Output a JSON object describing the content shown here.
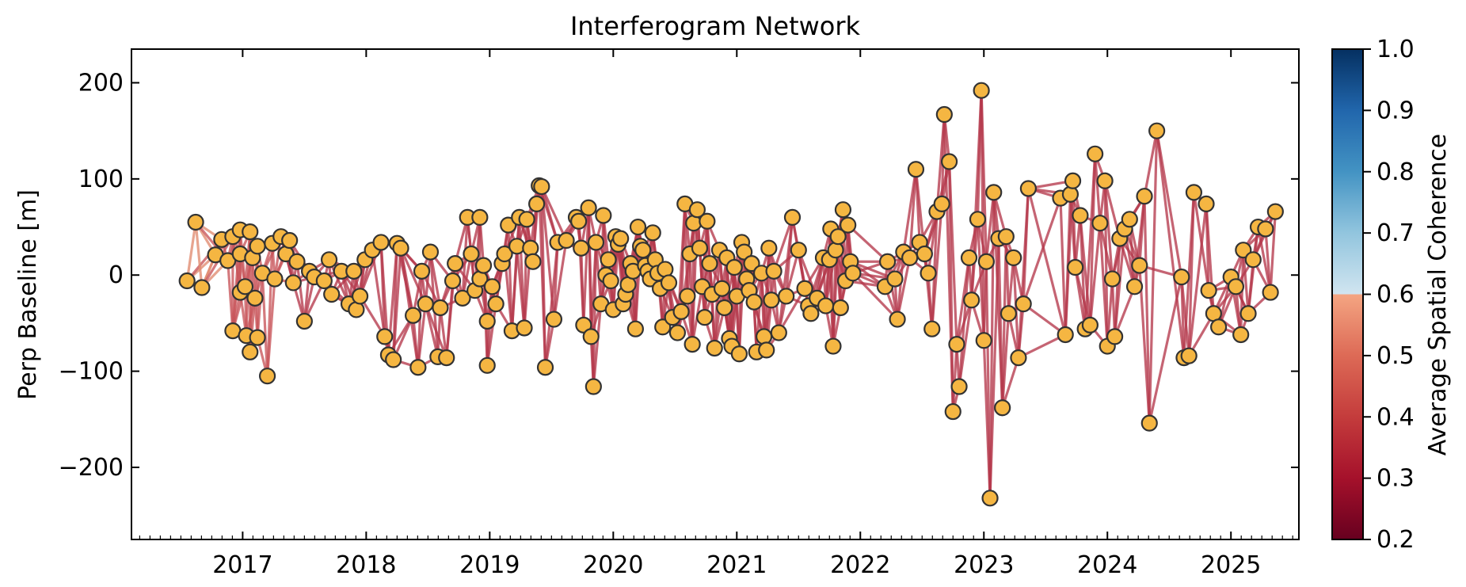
{
  "chart_data": {
    "type": "scatter",
    "title": "Interferogram Network",
    "xlabel": "",
    "ylabel": "Perp Baseline [m]",
    "xlim": [
      2016.1,
      2025.55
    ],
    "ylim": [
      -275,
      235
    ],
    "x_ticks": [
      2017,
      2018,
      2019,
      2020,
      2021,
      2022,
      2023,
      2024,
      2025
    ],
    "x_tick_labels": [
      "2017",
      "2018",
      "2019",
      "2020",
      "2021",
      "2022",
      "2023",
      "2024",
      "2025"
    ],
    "y_ticks": [
      -200,
      -100,
      0,
      100,
      200
    ],
    "y_tick_labels": [
      "−200",
      "−100",
      "0",
      "100",
      "200"
    ],
    "grid": false,
    "legend": "none",
    "marker_color": "#f5b642",
    "marker_edge_color": "#333333",
    "colorbar": {
      "label": "Average Spatial Coherence",
      "range": [
        0.2,
        1.0
      ],
      "ticks": [
        "0.2",
        "0.3",
        "0.4",
        "0.5",
        "0.6",
        "0.7",
        "0.8",
        "0.9",
        "1.0"
      ],
      "colormap": "RdBu"
    },
    "points": [
      [
        2016.55,
        -6
      ],
      [
        2016.62,
        55
      ],
      [
        2016.67,
        -13
      ],
      [
        2016.78,
        21
      ],
      [
        2016.83,
        37
      ],
      [
        2016.88,
        15
      ],
      [
        2016.92,
        40
      ],
      [
        2016.92,
        -58
      ],
      [
        2016.98,
        47
      ],
      [
        2016.98,
        22
      ],
      [
        2016.98,
        -18
      ],
      [
        2017.02,
        -12
      ],
      [
        2017.03,
        -63
      ],
      [
        2017.06,
        45
      ],
      [
        2017.06,
        -80
      ],
      [
        2017.08,
        18
      ],
      [
        2017.1,
        -24
      ],
      [
        2017.12,
        30
      ],
      [
        2017.12,
        -65
      ],
      [
        2017.16,
        2
      ],
      [
        2017.2,
        -105
      ],
      [
        2017.24,
        33
      ],
      [
        2017.26,
        -4
      ],
      [
        2017.31,
        40
      ],
      [
        2017.35,
        22
      ],
      [
        2017.38,
        36
      ],
      [
        2017.41,
        -8
      ],
      [
        2017.44,
        14
      ],
      [
        2017.5,
        -48
      ],
      [
        2017.54,
        4
      ],
      [
        2017.58,
        -2
      ],
      [
        2017.66,
        -6
      ],
      [
        2017.7,
        16
      ],
      [
        2017.72,
        -20
      ],
      [
        2017.8,
        4
      ],
      [
        2017.86,
        -30
      ],
      [
        2017.9,
        4
      ],
      [
        2017.92,
        -36
      ],
      [
        2017.95,
        -22
      ],
      [
        2017.99,
        16
      ],
      [
        2018.05,
        26
      ],
      [
        2018.12,
        34
      ],
      [
        2018.15,
        -64
      ],
      [
        2018.18,
        -83
      ],
      [
        2018.22,
        -88
      ],
      [
        2018.25,
        33
      ],
      [
        2018.28,
        28
      ],
      [
        2018.38,
        -42
      ],
      [
        2018.42,
        -96
      ],
      [
        2018.45,
        4
      ],
      [
        2018.48,
        -30
      ],
      [
        2018.52,
        24
      ],
      [
        2018.58,
        -85
      ],
      [
        2018.6,
        -34
      ],
      [
        2018.65,
        -86
      ],
      [
        2018.7,
        -6
      ],
      [
        2018.72,
        12
      ],
      [
        2018.78,
        -24
      ],
      [
        2018.82,
        60
      ],
      [
        2018.85,
        22
      ],
      [
        2018.88,
        -16
      ],
      [
        2018.92,
        60
      ],
      [
        2018.92,
        -4
      ],
      [
        2018.95,
        10
      ],
      [
        2018.98,
        -48
      ],
      [
        2018.98,
        -94
      ],
      [
        2019.02,
        -12
      ],
      [
        2019.05,
        -30
      ],
      [
        2019.1,
        12
      ],
      [
        2019.12,
        22
      ],
      [
        2019.15,
        52
      ],
      [
        2019.18,
        -58
      ],
      [
        2019.22,
        30
      ],
      [
        2019.24,
        60
      ],
      [
        2019.28,
        -55
      ],
      [
        2019.3,
        58
      ],
      [
        2019.33,
        28
      ],
      [
        2019.35,
        14
      ],
      [
        2019.38,
        74
      ],
      [
        2019.4,
        93
      ],
      [
        2019.42,
        92
      ],
      [
        2019.45,
        -96
      ],
      [
        2019.52,
        -46
      ],
      [
        2019.55,
        34
      ],
      [
        2019.62,
        36
      ],
      [
        2019.7,
        60
      ],
      [
        2019.72,
        56
      ],
      [
        2019.74,
        28
      ],
      [
        2019.76,
        -52
      ],
      [
        2019.8,
        70
      ],
      [
        2019.82,
        -64
      ],
      [
        2019.84,
        -116
      ],
      [
        2019.86,
        34
      ],
      [
        2019.9,
        -30
      ],
      [
        2019.92,
        62
      ],
      [
        2019.94,
        0
      ],
      [
        2019.96,
        16
      ],
      [
        2019.98,
        -6
      ],
      [
        2020.0,
        -36
      ],
      [
        2020.02,
        40
      ],
      [
        2020.04,
        32
      ],
      [
        2020.06,
        38
      ],
      [
        2020.08,
        -30
      ],
      [
        2020.1,
        -20
      ],
      [
        2020.12,
        -10
      ],
      [
        2020.14,
        12
      ],
      [
        2020.16,
        4
      ],
      [
        2020.18,
        -56
      ],
      [
        2020.2,
        50
      ],
      [
        2020.22,
        30
      ],
      [
        2020.24,
        26
      ],
      [
        2020.26,
        10
      ],
      [
        2020.28,
        4
      ],
      [
        2020.3,
        -4
      ],
      [
        2020.32,
        44
      ],
      [
        2020.34,
        16
      ],
      [
        2020.36,
        2
      ],
      [
        2020.38,
        -14
      ],
      [
        2020.4,
        -54
      ],
      [
        2020.42,
        6
      ],
      [
        2020.45,
        -8
      ],
      [
        2020.48,
        -44
      ],
      [
        2020.52,
        -60
      ],
      [
        2020.55,
        -38
      ],
      [
        2020.58,
        74
      ],
      [
        2020.6,
        -22
      ],
      [
        2020.62,
        22
      ],
      [
        2020.64,
        -72
      ],
      [
        2020.65,
        54
      ],
      [
        2020.68,
        68
      ],
      [
        2020.7,
        28
      ],
      [
        2020.72,
        -12
      ],
      [
        2020.74,
        -44
      ],
      [
        2020.76,
        56
      ],
      [
        2020.78,
        12
      ],
      [
        2020.8,
        -20
      ],
      [
        2020.82,
        -76
      ],
      [
        2020.86,
        26
      ],
      [
        2020.88,
        -14
      ],
      [
        2020.9,
        -34
      ],
      [
        2020.92,
        18
      ],
      [
        2020.94,
        -66
      ],
      [
        2020.96,
        -74
      ],
      [
        2020.98,
        8
      ],
      [
        2021.0,
        -22
      ],
      [
        2021.02,
        -82
      ],
      [
        2021.04,
        34
      ],
      [
        2021.06,
        24
      ],
      [
        2021.08,
        -4
      ],
      [
        2021.1,
        -16
      ],
      [
        2021.12,
        12
      ],
      [
        2021.14,
        -28
      ],
      [
        2021.16,
        -80
      ],
      [
        2021.2,
        2
      ],
      [
        2021.22,
        -64
      ],
      [
        2021.24,
        -78
      ],
      [
        2021.26,
        28
      ],
      [
        2021.28,
        -26
      ],
      [
        2021.3,
        4
      ],
      [
        2021.34,
        -60
      ],
      [
        2021.4,
        -22
      ],
      [
        2021.45,
        60
      ],
      [
        2021.5,
        26
      ],
      [
        2021.55,
        -14
      ],
      [
        2021.58,
        -32
      ],
      [
        2021.6,
        -40
      ],
      [
        2021.65,
        -24
      ],
      [
        2021.7,
        18
      ],
      [
        2021.72,
        -32
      ],
      [
        2021.75,
        16
      ],
      [
        2021.76,
        48
      ],
      [
        2021.78,
        -74
      ],
      [
        2021.8,
        26
      ],
      [
        2021.82,
        40
      ],
      [
        2021.84,
        -34
      ],
      [
        2021.86,
        68
      ],
      [
        2021.88,
        -6
      ],
      [
        2021.9,
        52
      ],
      [
        2021.92,
        14
      ],
      [
        2021.94,
        2
      ],
      [
        2022.2,
        -12
      ],
      [
        2022.22,
        14
      ],
      [
        2022.28,
        -4
      ],
      [
        2022.3,
        -46
      ],
      [
        2022.35,
        24
      ],
      [
        2022.4,
        18
      ],
      [
        2022.45,
        110
      ],
      [
        2022.48,
        34
      ],
      [
        2022.52,
        22
      ],
      [
        2022.55,
        2
      ],
      [
        2022.58,
        -56
      ],
      [
        2022.62,
        66
      ],
      [
        2022.66,
        74
      ],
      [
        2022.68,
        167
      ],
      [
        2022.72,
        118
      ],
      [
        2022.75,
        -142
      ],
      [
        2022.78,
        -72
      ],
      [
        2022.8,
        -116
      ],
      [
        2022.88,
        18
      ],
      [
        2022.9,
        -26
      ],
      [
        2022.95,
        58
      ],
      [
        2022.98,
        192
      ],
      [
        2023.0,
        -68
      ],
      [
        2023.02,
        14
      ],
      [
        2023.05,
        -232
      ],
      [
        2023.08,
        86
      ],
      [
        2023.12,
        38
      ],
      [
        2023.15,
        -138
      ],
      [
        2023.18,
        40
      ],
      [
        2023.2,
        -40
      ],
      [
        2023.24,
        18
      ],
      [
        2023.28,
        -86
      ],
      [
        2023.32,
        -30
      ],
      [
        2023.36,
        90
      ],
      [
        2023.62,
        80
      ],
      [
        2023.66,
        -62
      ],
      [
        2023.7,
        84
      ],
      [
        2023.72,
        98
      ],
      [
        2023.74,
        8
      ],
      [
        2023.78,
        62
      ],
      [
        2023.82,
        -56
      ],
      [
        2023.86,
        -52
      ],
      [
        2023.9,
        126
      ],
      [
        2023.94,
        54
      ],
      [
        2023.98,
        98
      ],
      [
        2024.0,
        -74
      ],
      [
        2024.04,
        -4
      ],
      [
        2024.06,
        -64
      ],
      [
        2024.1,
        38
      ],
      [
        2024.14,
        48
      ],
      [
        2024.18,
        58
      ],
      [
        2024.22,
        -12
      ],
      [
        2024.26,
        10
      ],
      [
        2024.3,
        82
      ],
      [
        2024.34,
        -154
      ],
      [
        2024.4,
        150
      ],
      [
        2024.6,
        -2
      ],
      [
        2024.62,
        -86
      ],
      [
        2024.66,
        -84
      ],
      [
        2024.7,
        86
      ],
      [
        2024.8,
        74
      ],
      [
        2024.82,
        -16
      ],
      [
        2024.86,
        -40
      ],
      [
        2024.9,
        -54
      ],
      [
        2025.0,
        -2
      ],
      [
        2025.04,
        -12
      ],
      [
        2025.08,
        -62
      ],
      [
        2025.1,
        26
      ],
      [
        2025.14,
        -40
      ],
      [
        2025.18,
        16
      ],
      [
        2025.22,
        50
      ],
      [
        2025.28,
        48
      ],
      [
        2025.32,
        -18
      ],
      [
        2025.36,
        66
      ]
    ]
  }
}
